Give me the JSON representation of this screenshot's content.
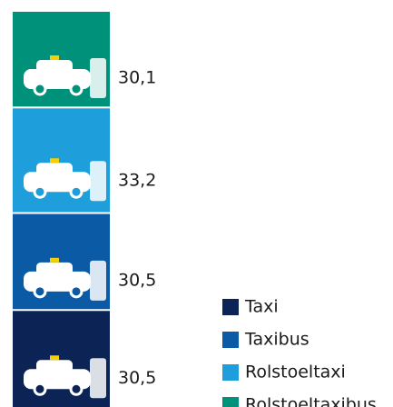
{
  "chart_data": {
    "type": "stacked-bar",
    "series": [
      {
        "name": "Taxi",
        "color": "#0b2355",
        "values": [
          30.5
        ],
        "value_labels": [
          "30,5"
        ]
      },
      {
        "name": "Taxibus",
        "color": "#0b5aa6",
        "values": [
          30.5
        ],
        "value_labels": [
          "30,5"
        ]
      },
      {
        "name": "Rolstoeltaxi",
        "color": "#1e9fdc",
        "values": [
          33.2
        ],
        "value_labels": [
          "33,2"
        ]
      },
      {
        "name": "Rolstoeltaxibus",
        "color": "#00917b",
        "values": [
          30.1
        ],
        "value_labels": [
          "30,1"
        ]
      }
    ]
  }
}
